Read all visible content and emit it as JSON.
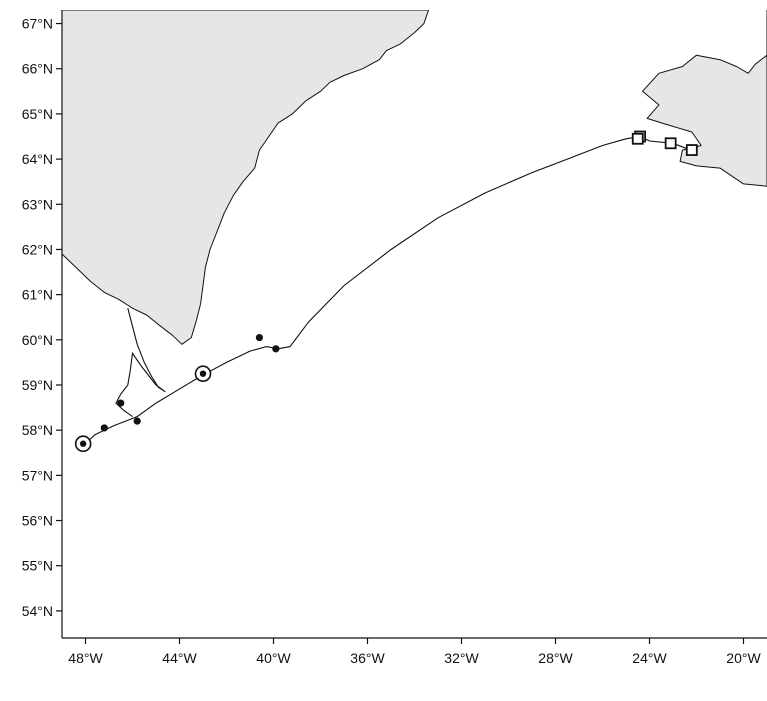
{
  "chart_data": {
    "type": "map",
    "title": "",
    "xlabel": "",
    "ylabel": "",
    "grid": false,
    "xlim": [
      -49,
      -19
    ],
    "ylim": [
      53.4,
      67.3
    ],
    "x_ticks": [
      -48,
      -44,
      -40,
      -36,
      -32,
      -28,
      -24,
      -20
    ],
    "x_tick_labels": [
      "48°W",
      "44°W",
      "40°W",
      "36°W",
      "32°W",
      "28°W",
      "24°W",
      "20°W"
    ],
    "y_ticks": [
      67,
      66,
      65,
      64,
      63,
      62,
      61,
      60,
      59,
      58,
      57,
      56,
      55,
      54
    ],
    "y_tick_labels": [
      "67°N",
      "66°N",
      "65°N",
      "64°N",
      "63°N",
      "62°N",
      "61°N",
      "60°N",
      "59°N",
      "58°N",
      "57°N",
      "56°N",
      "55°N",
      "54°N"
    ],
    "land_fill_color": "#e6e6e6",
    "landmasses": [
      {
        "id": "greenland",
        "outline": [
          [
            -49,
            67.3
          ],
          [
            -33.4,
            67.3
          ],
          [
            -33.6,
            67.0
          ],
          [
            -34.0,
            66.8
          ],
          [
            -34.6,
            66.55
          ],
          [
            -35.2,
            66.4
          ],
          [
            -35.5,
            66.2
          ],
          [
            -36.2,
            66.0
          ],
          [
            -37.0,
            65.85
          ],
          [
            -37.6,
            65.7
          ],
          [
            -38.0,
            65.5
          ],
          [
            -38.6,
            65.3
          ],
          [
            -39.2,
            65.0
          ],
          [
            -39.8,
            64.8
          ],
          [
            -40.2,
            64.5
          ],
          [
            -40.6,
            64.2
          ],
          [
            -40.8,
            63.8
          ],
          [
            -41.3,
            63.5
          ],
          [
            -41.7,
            63.2
          ],
          [
            -42.1,
            62.8
          ],
          [
            -42.4,
            62.4
          ],
          [
            -42.7,
            62.0
          ],
          [
            -42.9,
            61.6
          ],
          [
            -43.0,
            61.2
          ],
          [
            -43.1,
            60.8
          ],
          [
            -43.3,
            60.4
          ],
          [
            -43.5,
            60.05
          ],
          [
            -43.9,
            59.9
          ],
          [
            -44.3,
            60.1
          ],
          [
            -44.8,
            60.3
          ],
          [
            -45.4,
            60.55
          ],
          [
            -46.0,
            60.7
          ],
          [
            -46.6,
            60.9
          ],
          [
            -47.2,
            61.05
          ],
          [
            -47.8,
            61.3
          ],
          [
            -48.4,
            61.6
          ],
          [
            -49,
            61.9
          ]
        ]
      },
      {
        "id": "iceland",
        "outline": [
          [
            -19,
            67.3
          ],
          [
            -19,
            63.4
          ],
          [
            -20.0,
            63.45
          ],
          [
            -21.0,
            63.8
          ],
          [
            -22.0,
            63.85
          ],
          [
            -22.7,
            63.95
          ],
          [
            -22.6,
            64.2
          ],
          [
            -21.8,
            64.3
          ],
          [
            -22.2,
            64.6
          ],
          [
            -23.5,
            64.8
          ],
          [
            -24.1,
            64.9
          ],
          [
            -23.6,
            65.2
          ],
          [
            -24.3,
            65.5
          ],
          [
            -23.6,
            65.9
          ],
          [
            -22.6,
            66.05
          ],
          [
            -22.0,
            66.3
          ],
          [
            -21.0,
            66.2
          ],
          [
            -20.3,
            66.05
          ],
          [
            -19.8,
            65.9
          ],
          [
            -19.5,
            66.1
          ],
          [
            -19,
            66.3
          ]
        ]
      }
    ],
    "series": [
      {
        "id": "track",
        "style": "line",
        "points": [
          [
            -48.3,
            57.55
          ],
          [
            -47.6,
            57.9
          ],
          [
            -46.8,
            58.1
          ],
          [
            -45.8,
            58.3
          ],
          [
            -45.0,
            58.6
          ],
          [
            -44.2,
            58.85
          ],
          [
            -43.4,
            59.1
          ],
          [
            -42.9,
            59.25
          ],
          [
            -42.0,
            59.5
          ],
          [
            -41.0,
            59.75
          ],
          [
            -40.3,
            59.85
          ],
          [
            -39.8,
            59.8
          ],
          [
            -39.3,
            59.85
          ],
          [
            -38.5,
            60.4
          ],
          [
            -37.0,
            61.2
          ],
          [
            -35.0,
            62.0
          ],
          [
            -33.0,
            62.7
          ],
          [
            -31.0,
            63.25
          ],
          [
            -29.0,
            63.7
          ],
          [
            -27.5,
            64.0
          ],
          [
            -26.0,
            64.3
          ],
          [
            -25.0,
            64.45
          ],
          [
            -24.4,
            64.5
          ],
          [
            -24.0,
            64.4
          ],
          [
            -23.0,
            64.35
          ],
          [
            -22.5,
            64.25
          ],
          [
            -22.0,
            64.2
          ]
        ]
      },
      {
        "id": "inshore-loop",
        "style": "line",
        "points": [
          [
            -46.2,
            60.7
          ],
          [
            -46.0,
            60.3
          ],
          [
            -45.8,
            59.9
          ],
          [
            -45.5,
            59.5
          ],
          [
            -45.2,
            59.2
          ],
          [
            -44.9,
            58.95
          ],
          [
            -44.6,
            58.85
          ],
          [
            -45.0,
            59.0
          ],
          [
            -45.6,
            59.4
          ],
          [
            -46.0,
            59.7
          ],
          [
            -46.1,
            59.3
          ],
          [
            -46.2,
            59.0
          ],
          [
            -46.5,
            58.8
          ],
          [
            -46.7,
            58.6
          ],
          [
            -46.4,
            58.45
          ],
          [
            -46.0,
            58.3
          ]
        ]
      },
      {
        "id": "filled-circles",
        "style": "points",
        "marker": "filled-circle",
        "points": [
          [
            -46.5,
            58.6
          ],
          [
            -47.2,
            58.05
          ],
          [
            -45.8,
            58.2
          ],
          [
            -40.6,
            60.05
          ],
          [
            -39.9,
            59.8
          ]
        ]
      },
      {
        "id": "open-squares",
        "style": "points",
        "marker": "open-square",
        "points": [
          [
            -24.4,
            64.5
          ],
          [
            -24.5,
            64.45
          ],
          [
            -23.1,
            64.35
          ],
          [
            -22.2,
            64.2
          ]
        ]
      },
      {
        "id": "ringed-circles",
        "style": "points",
        "marker": "ringed-circle",
        "points": [
          [
            -48.1,
            57.7
          ],
          [
            -43.0,
            59.25
          ]
        ]
      }
    ]
  }
}
